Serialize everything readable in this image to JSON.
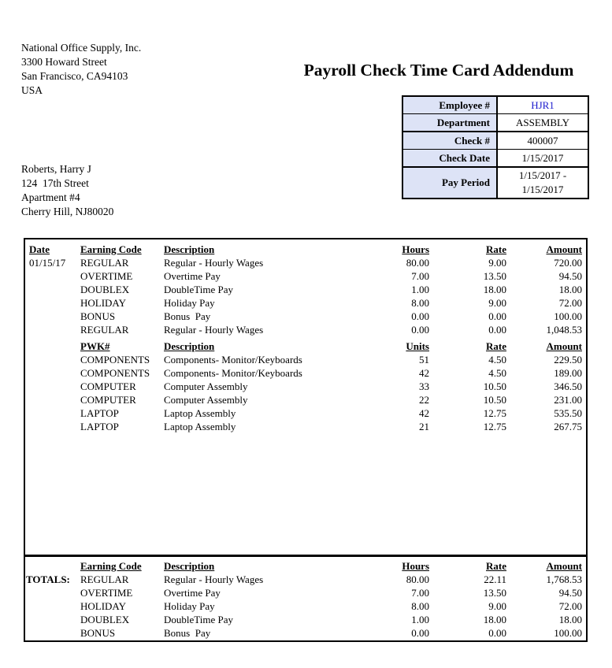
{
  "colors": {
    "info_label_bg": "#dde3f6",
    "employee_id_text": "#1a1acd",
    "border": "#000000"
  },
  "company": {
    "lines": [
      "National Office Supply, Inc.",
      "3300 Howard Street",
      "San Francisco, CA94103",
      "USA"
    ]
  },
  "title": "Payroll Check Time Card Addendum",
  "employee_info": {
    "rows": [
      {
        "label": "Employee #",
        "value": "HJR1"
      },
      {
        "label": "Department",
        "value": "ASSEMBLY"
      },
      {
        "label": "Check #",
        "value": "400007"
      },
      {
        "label": "Check Date",
        "value": "1/15/2017"
      },
      {
        "label": "Pay Period",
        "value": "1/15/2017 -\n1/15/2017"
      }
    ]
  },
  "employee_address": {
    "lines": [
      "Roberts, Harry J",
      "124  17th Street",
      "Apartment #4",
      "Cherry Hill, NJ80020"
    ]
  },
  "earnings_section": {
    "headers": {
      "date": "Date",
      "code": "Earning Code",
      "description": "Description",
      "qty": "Hours",
      "rate": "Rate",
      "amount": "Amount"
    },
    "rows": [
      {
        "date": "01/15/17",
        "code": "REGULAR",
        "description": "Regular - Hourly Wages",
        "qty": "80.00",
        "rate": "9.00",
        "amount": "720.00"
      },
      {
        "date": "",
        "code": "OVERTIME",
        "description": "Overtime Pay",
        "qty": "7.00",
        "rate": "13.50",
        "amount": "94.50"
      },
      {
        "date": "",
        "code": "DOUBLEX",
        "description": "DoubleTime Pay",
        "qty": "1.00",
        "rate": "18.00",
        "amount": "18.00"
      },
      {
        "date": "",
        "code": "HOLIDAY",
        "description": "Holiday Pay",
        "qty": "8.00",
        "rate": "9.00",
        "amount": "72.00"
      },
      {
        "date": "",
        "code": "BONUS",
        "description": "Bonus  Pay",
        "qty": "0.00",
        "rate": "0.00",
        "amount": "100.00"
      },
      {
        "date": "",
        "code": "REGULAR",
        "description": "Regular - Hourly Wages",
        "qty": "0.00",
        "rate": "0.00",
        "amount": "1,048.53"
      }
    ]
  },
  "piecework_section": {
    "headers": {
      "date": "",
      "code": "PWK#",
      "description": "Description",
      "qty": "Units",
      "rate": "Rate",
      "amount": "Amount"
    },
    "rows": [
      {
        "date": "",
        "code": "COMPONENTS",
        "description": "Components- Monitor/Keyboards",
        "qty": "51",
        "rate": "4.50",
        "amount": "229.50"
      },
      {
        "date": "",
        "code": "COMPONENTS",
        "description": "Components- Monitor/Keyboards",
        "qty": "42",
        "rate": "4.50",
        "amount": "189.00"
      },
      {
        "date": "",
        "code": "COMPUTER",
        "description": "Computer Assembly",
        "qty": "33",
        "rate": "10.50",
        "amount": "346.50"
      },
      {
        "date": "",
        "code": "COMPUTER",
        "description": "Computer Assembly",
        "qty": "22",
        "rate": "10.50",
        "amount": "231.00"
      },
      {
        "date": "",
        "code": "LAPTOP",
        "description": "Laptop Assembly",
        "qty": "42",
        "rate": "12.75",
        "amount": "535.50"
      },
      {
        "date": "",
        "code": "LAPTOP",
        "description": "Laptop Assembly",
        "qty": "21",
        "rate": "12.75",
        "amount": "267.75"
      }
    ]
  },
  "totals_section": {
    "headers": {
      "date": "",
      "code": "Earning Code",
      "description": "Description",
      "qty": "Hours",
      "rate": "Rate",
      "amount": "Amount"
    },
    "rows": [
      {
        "date": "TOTALS:",
        "code": "REGULAR",
        "description": "Regular - Hourly Wages",
        "qty": "80.00",
        "rate": "22.11",
        "amount": "1,768.53"
      },
      {
        "date": "",
        "code": "OVERTIME",
        "description": "Overtime Pay",
        "qty": "7.00",
        "rate": "13.50",
        "amount": "94.50"
      },
      {
        "date": "",
        "code": "HOLIDAY",
        "description": "Holiday Pay",
        "qty": "8.00",
        "rate": "9.00",
        "amount": "72.00"
      },
      {
        "date": "",
        "code": "DOUBLEX",
        "description": "DoubleTime Pay",
        "qty": "1.00",
        "rate": "18.00",
        "amount": "18.00"
      },
      {
        "date": "",
        "code": "BONUS",
        "description": "Bonus  Pay",
        "qty": "0.00",
        "rate": "0.00",
        "amount": "100.00"
      }
    ]
  }
}
